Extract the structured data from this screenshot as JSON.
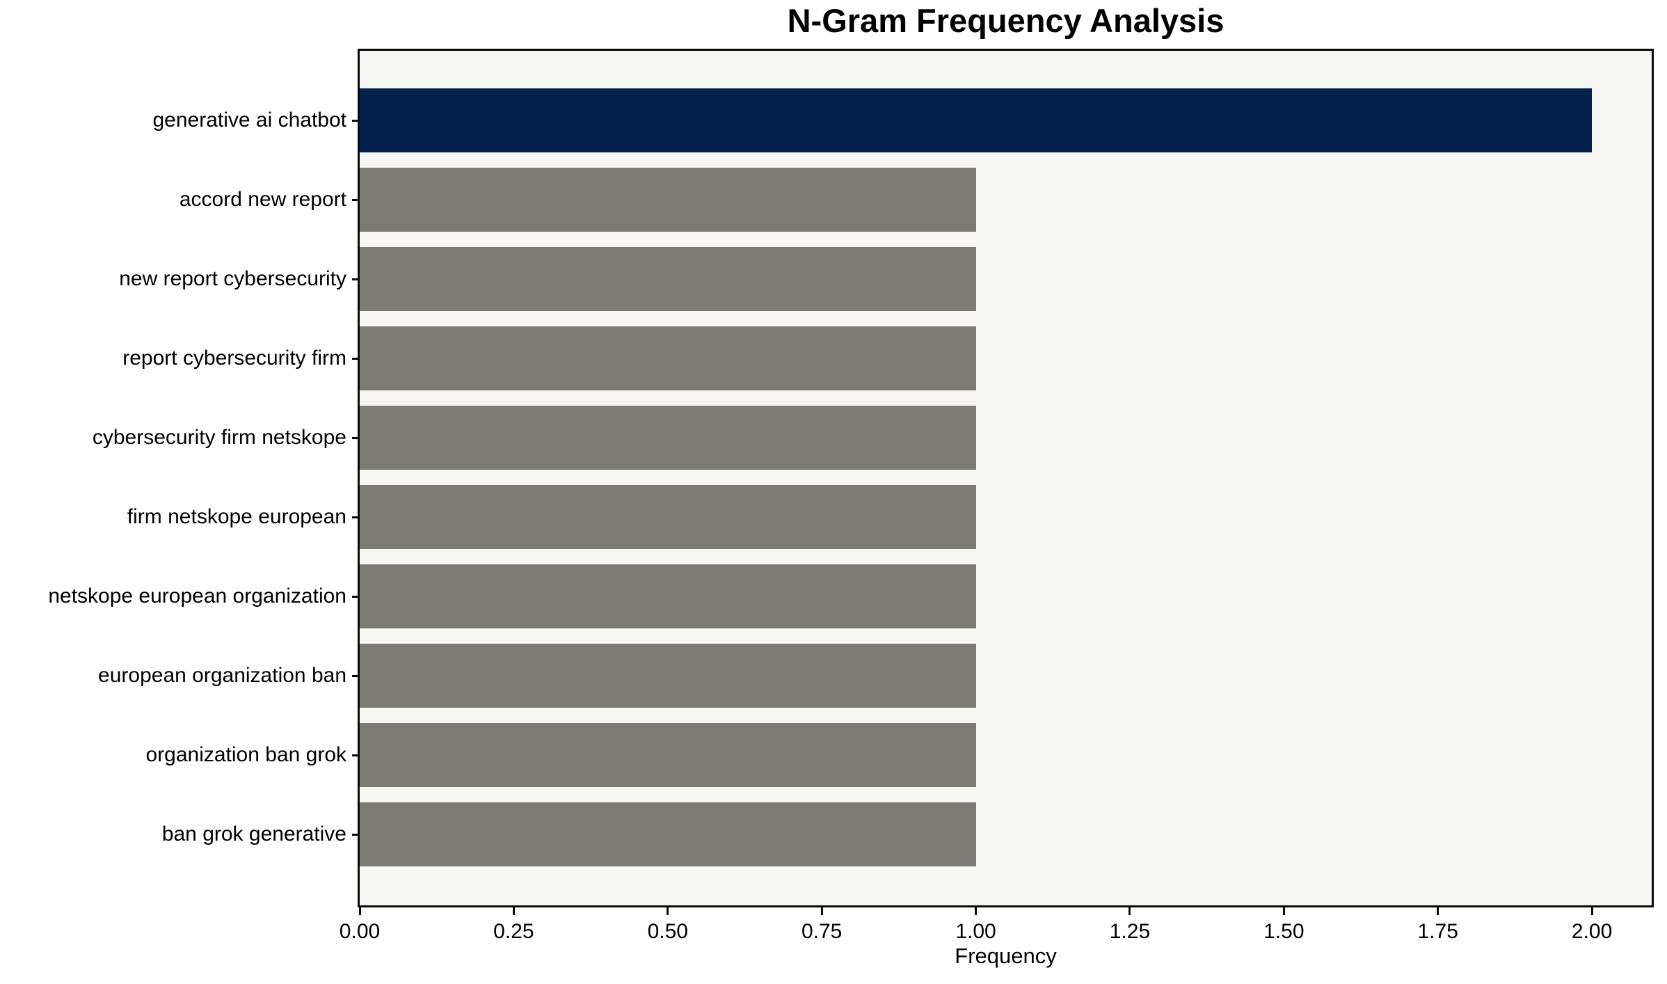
{
  "chart_data": {
    "type": "bar",
    "orientation": "horizontal",
    "title": "N-Gram Frequency Analysis",
    "xlabel": "Frequency",
    "ylabel": "",
    "categories": [
      "generative ai chatbot",
      "accord new report",
      "new report cybersecurity",
      "report cybersecurity firm",
      "cybersecurity firm netskope",
      "firm netskope european",
      "netskope european organization",
      "european organization ban",
      "organization ban grok",
      "ban grok generative"
    ],
    "values": [
      2,
      1,
      1,
      1,
      1,
      1,
      1,
      1,
      1,
      1
    ],
    "bar_colors": [
      "#02224B",
      "#7C7A75",
      "#7C7A75",
      "#7C7A75",
      "#7C7A75",
      "#7C7A75",
      "#7C7A75",
      "#7C7A75",
      "#7C7A75",
      "#7C7A75"
    ],
    "xlim": [
      0,
      2.097
    ],
    "xticks": [
      0,
      0.25,
      0.5,
      0.75,
      1.0,
      1.25,
      1.5,
      1.75,
      2.0
    ],
    "xtick_labels": [
      "0.00",
      "0.25",
      "0.50",
      "0.75",
      "1.00",
      "1.25",
      "1.50",
      "1.75",
      "2.00"
    ],
    "grid": false,
    "legend": null,
    "colors": {
      "bar_highlight": "#02224B",
      "bar_default": "#7C7A75",
      "plot_background": "#F6F6F5",
      "figure_background": "#FFFFFF",
      "spine": "#0A0A0A",
      "text": "#000000"
    }
  }
}
